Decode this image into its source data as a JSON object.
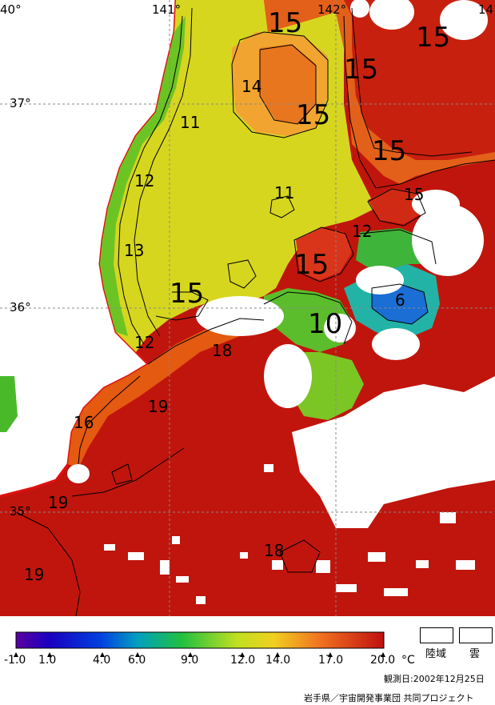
{
  "lon_labels": [
    "40°",
    "141°",
    "142°",
    "14"
  ],
  "lat_labels": [
    "37°",
    "36°",
    "35°"
  ],
  "contour_labels": [
    "15",
    "15",
    "15",
    "15",
    "15",
    "14",
    "15",
    "11",
    "12",
    "11",
    "13",
    "12",
    "15",
    "15",
    "6",
    "10",
    "12",
    "18",
    "19",
    "16",
    "19",
    "19",
    "18"
  ],
  "colorbar": {
    "ticks": [
      "-1.0",
      "1.0",
      "4.0",
      "6.0",
      "9.0",
      "12.0",
      "14.0",
      "17.0",
      "20.0"
    ],
    "unit": "°C"
  },
  "legend_boxes": {
    "land": "陸域",
    "cloud": "雲"
  },
  "observation_date": "観測日:2002年12月25日",
  "credit": "岩手県／宇宙開発事業団 共同プロジェクト"
}
